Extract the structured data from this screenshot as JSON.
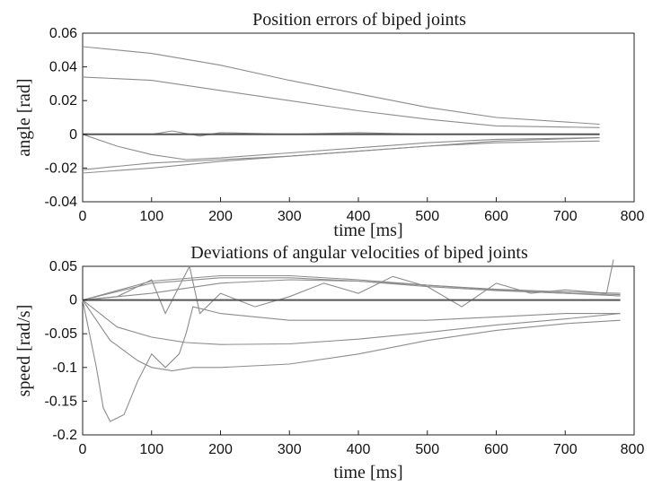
{
  "chart_data": [
    {
      "type": "line",
      "title": "Position errors of biped joints",
      "xlabel": "time [ms]",
      "ylabel": "angle [rad]",
      "xlim": [
        0,
        800
      ],
      "ylim": [
        -0.04,
        0.06
      ],
      "xticks": [
        "0",
        "100",
        "200",
        "300",
        "400",
        "500",
        "600",
        "700",
        "800"
      ],
      "yticks": [
        "0.06",
        "0.04",
        "0.02",
        "0",
        "-0.02",
        "-0.04"
      ],
      "grid": false,
      "line_color": "#8c8c8c",
      "series": [
        {
          "x": [
            0,
            100,
            200,
            300,
            400,
            500,
            600,
            750
          ],
          "y": [
            0.052,
            0.048,
            0.041,
            0.032,
            0.024,
            0.016,
            0.01,
            0.006
          ]
        },
        {
          "x": [
            0,
            100,
            200,
            300,
            400,
            500,
            600,
            750
          ],
          "y": [
            0.034,
            0.032,
            0.026,
            0.02,
            0.014,
            0.009,
            0.005,
            0.004
          ]
        },
        {
          "x": [
            0,
            50,
            100,
            150,
            200,
            300,
            400,
            500,
            600,
            750
          ],
          "y": [
            -0.021,
            -0.019,
            -0.017,
            -0.016,
            -0.015,
            -0.013,
            -0.01,
            -0.007,
            -0.004,
            -0.002
          ]
        },
        {
          "x": [
            0,
            100,
            200,
            300,
            400,
            500,
            600,
            750
          ],
          "y": [
            -0.023,
            -0.02,
            -0.016,
            -0.013,
            -0.01,
            -0.007,
            -0.005,
            -0.004
          ]
        },
        {
          "x": [
            0,
            50,
            100,
            150,
            200,
            300,
            400,
            500,
            600,
            750
          ],
          "y": [
            0,
            -0.007,
            -0.012,
            -0.015,
            -0.014,
            -0.011,
            -0.008,
            -0.005,
            -0.003,
            -0.002
          ]
        },
        {
          "x": [
            0,
            100,
            130,
            170,
            200,
            300,
            400,
            500,
            600,
            750
          ],
          "y": [
            0,
            0,
            0.002,
            -0.001,
            0.001,
            0,
            0.001,
            0,
            0,
            0
          ]
        },
        {
          "x": [
            0,
            750
          ],
          "y": [
            0,
            0
          ]
        }
      ]
    },
    {
      "type": "line",
      "title": "Deviations of angular velocities of biped joints",
      "xlabel": "time [ms]",
      "ylabel": "speed [rad/s]",
      "xlim": [
        0,
        800
      ],
      "ylim": [
        -0.2,
        0.05
      ],
      "xticks": [
        "0",
        "100",
        "200",
        "300",
        "400",
        "500",
        "600",
        "700",
        "800"
      ],
      "yticks": [
        "0.05",
        "0",
        "-0.05",
        "-0.1",
        "-0.15",
        "-0.2"
      ],
      "grid": false,
      "line_color": "#8c8c8c",
      "series": [
        {
          "x": [
            0,
            20,
            30,
            40,
            60,
            80,
            100,
            120,
            140,
            150,
            160,
            200,
            300,
            400,
            500,
            600,
            700,
            780
          ],
          "y": [
            0,
            -0.1,
            -0.16,
            -0.18,
            -0.17,
            -0.12,
            -0.08,
            -0.1,
            -0.08,
            -0.05,
            -0.01,
            -0.02,
            -0.03,
            -0.03,
            -0.03,
            -0.025,
            -0.02,
            -0.02
          ]
        },
        {
          "x": [
            0,
            50,
            100,
            150,
            200,
            300,
            400,
            500,
            600,
            700,
            780
          ],
          "y": [
            0,
            -0.04,
            -0.055,
            -0.063,
            -0.066,
            -0.065,
            -0.058,
            -0.048,
            -0.037,
            -0.028,
            -0.02
          ]
        },
        {
          "x": [
            0,
            40,
            80,
            100,
            130,
            160,
            200,
            300,
            400,
            500,
            600,
            700,
            780
          ],
          "y": [
            0,
            -0.06,
            -0.09,
            -0.1,
            -0.105,
            -0.1,
            -0.1,
            -0.095,
            -0.08,
            -0.06,
            -0.045,
            -0.035,
            -0.03
          ]
        },
        {
          "x": [
            0,
            100,
            200,
            300,
            400,
            500,
            600,
            700,
            780
          ],
          "y": [
            0,
            0.025,
            0.033,
            0.033,
            0.028,
            0.02,
            0.014,
            0.01,
            0.008
          ]
        },
        {
          "x": [
            0,
            100,
            200,
            300,
            400,
            500,
            600,
            700,
            780
          ],
          "y": [
            0,
            0.028,
            0.036,
            0.036,
            0.03,
            0.022,
            0.016,
            0.012,
            0.01
          ]
        },
        {
          "x": [
            0,
            50,
            80,
            100,
            120,
            140,
            155,
            170,
            200,
            250,
            300,
            350,
            400,
            450,
            500,
            550,
            600,
            650,
            700,
            760,
            770
          ],
          "y": [
            0,
            0.005,
            0.02,
            0.03,
            -0.02,
            0.02,
            0.05,
            -0.02,
            0.01,
            -0.01,
            0.005,
            0.025,
            0.01,
            0.035,
            0.02,
            -0.01,
            0.025,
            0.01,
            0.015,
            0.01,
            0.06
          ]
        },
        {
          "x": [
            0,
            100,
            200,
            300,
            400,
            500,
            600,
            700,
            780
          ],
          "y": [
            0,
            0.01,
            0.025,
            0.03,
            0.028,
            0.022,
            0.015,
            0.01,
            0.006
          ]
        },
        {
          "x": [
            0,
            780
          ],
          "y": [
            0,
            0
          ]
        }
      ]
    }
  ]
}
